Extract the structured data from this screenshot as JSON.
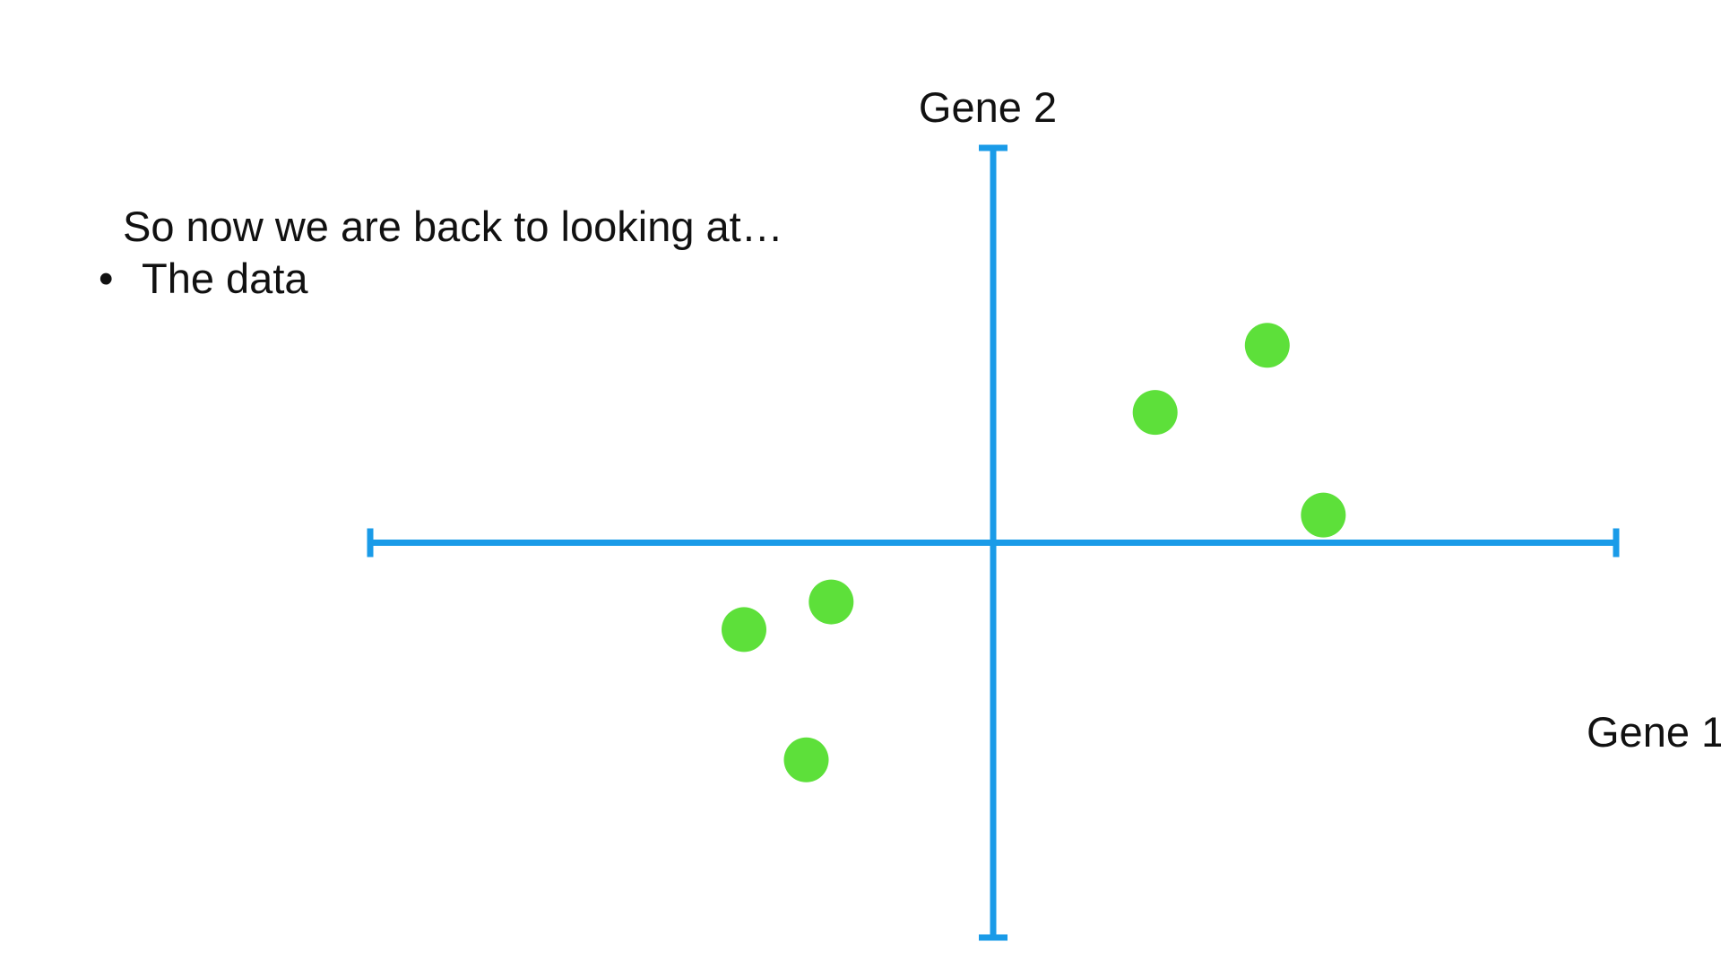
{
  "slide": {
    "intro_text": "So now we are back to looking at…",
    "bullets": [
      {
        "marker": "•",
        "text": "The data"
      }
    ]
  },
  "chart_data": {
    "type": "scatter",
    "title": "",
    "xlabel": "Gene 1",
    "ylabel": "Gene 2",
    "xlim": [
      -10,
      10
    ],
    "ylim": [
      -10,
      10
    ],
    "grid": false,
    "legend": "none",
    "axis_color": "#1a9be8",
    "point_color": "#5de03a",
    "series": [
      {
        "points": [
          {
            "x": -4.0,
            "y": -2.2
          },
          {
            "x": -2.6,
            "y": -1.5
          },
          {
            "x": -3.0,
            "y": -5.5
          },
          {
            "x": 2.6,
            "y": 3.3
          },
          {
            "x": 4.4,
            "y": 5.0
          },
          {
            "x": 5.3,
            "y": 0.7
          }
        ]
      }
    ]
  }
}
